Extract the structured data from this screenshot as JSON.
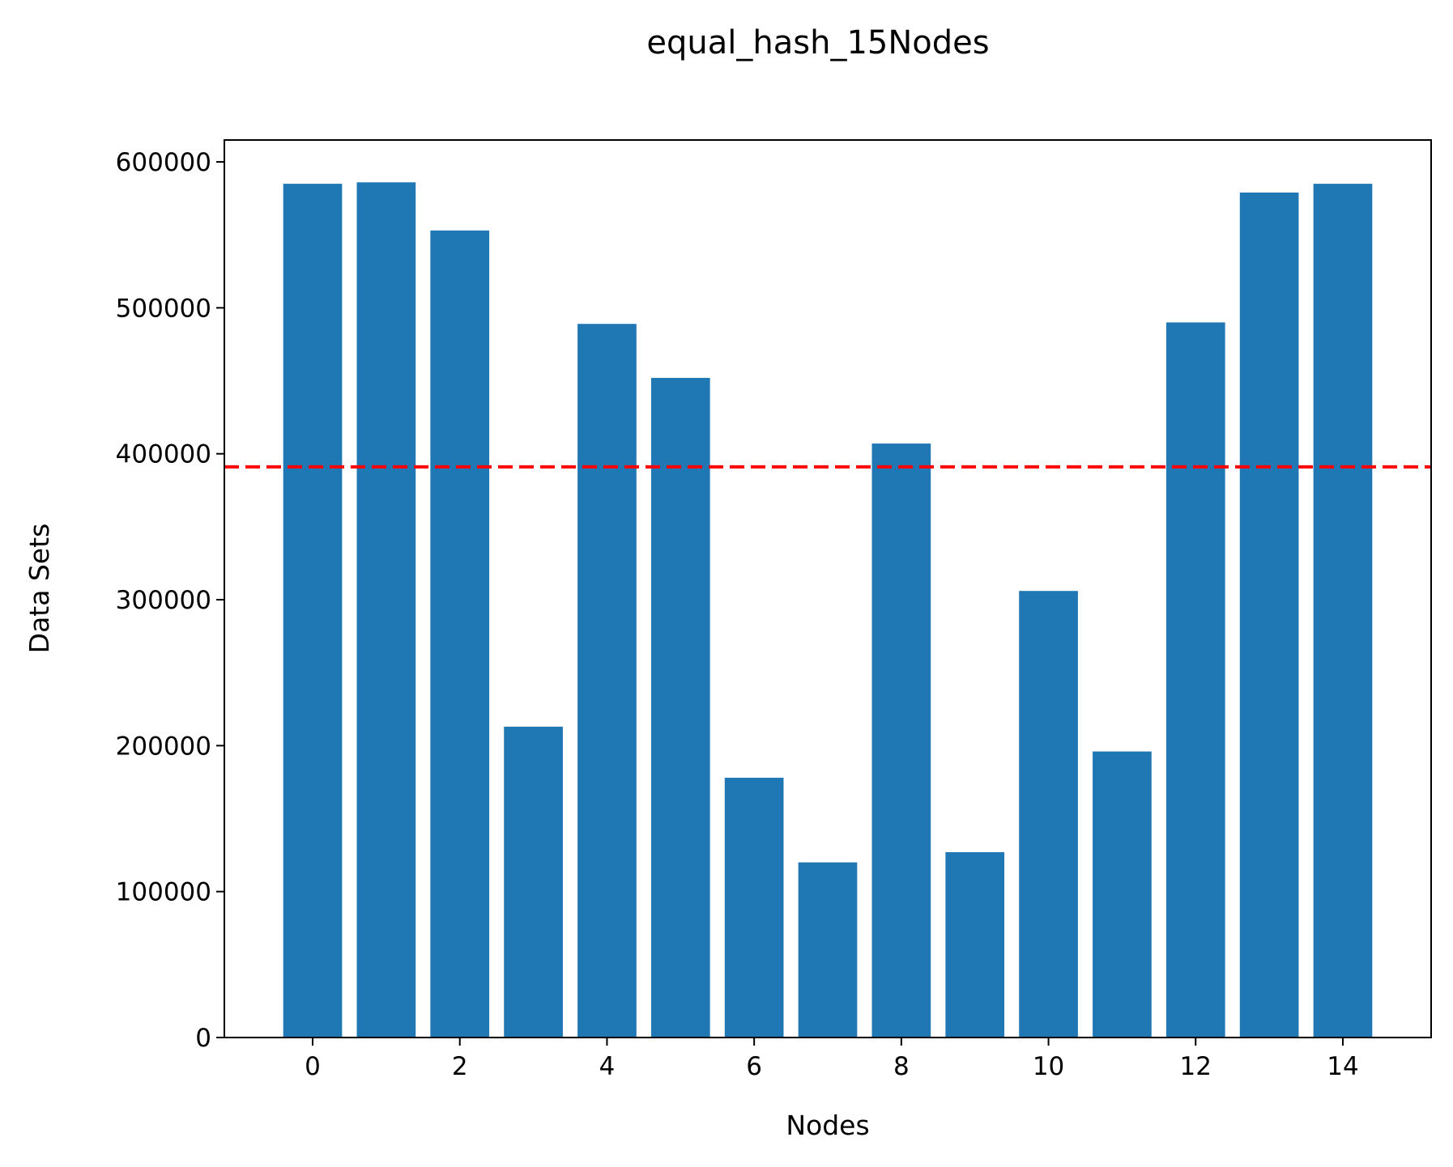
{
  "chart_data": {
    "type": "bar",
    "title": "equal_hash_15Nodes",
    "xlabel": "Nodes",
    "ylabel": "Data Sets",
    "x": [
      0,
      1,
      2,
      3,
      4,
      5,
      6,
      7,
      8,
      9,
      10,
      11,
      12,
      13,
      14
    ],
    "values": [
      585000,
      586000,
      553000,
      213000,
      489000,
      452000,
      178000,
      120000,
      407000,
      127000,
      306000,
      196000,
      490000,
      579000,
      585000
    ],
    "xlim": [
      -1.2,
      15.2
    ],
    "ylim": [
      0,
      615000
    ],
    "xticks": [
      0,
      2,
      4,
      6,
      8,
      10,
      12,
      14
    ],
    "yticks": [
      0,
      100000,
      200000,
      300000,
      400000,
      500000,
      600000
    ],
    "mean_line": {
      "value": 391000,
      "style": "dashed",
      "color": "#ff0000"
    },
    "bar_color": "#1f77b4",
    "grid": false
  }
}
